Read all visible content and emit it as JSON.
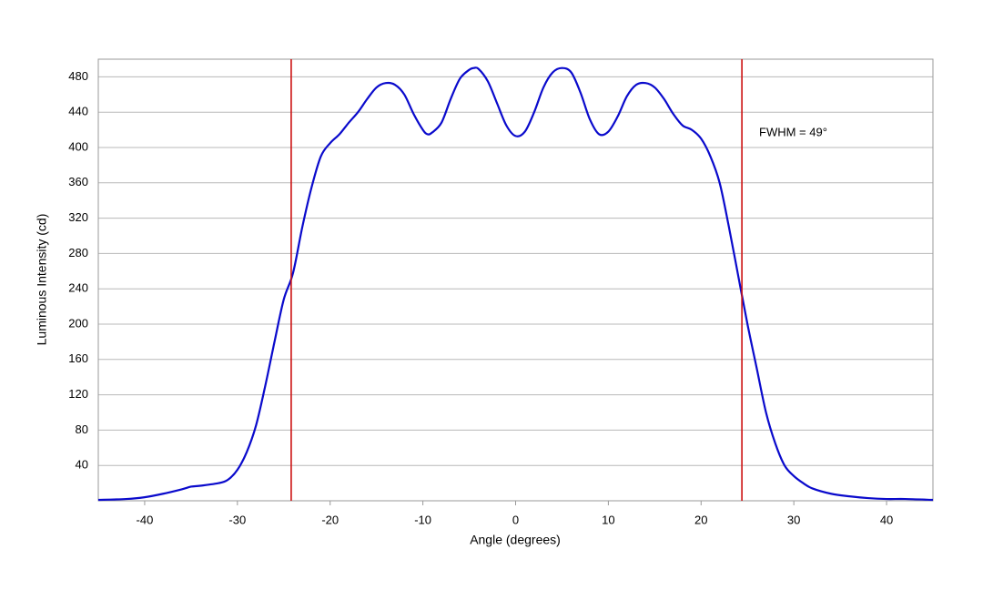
{
  "chart_data": {
    "type": "line",
    "xlabel": "Angle (degrees)",
    "ylabel": "Luminous Intensity (cd)",
    "annotation": "FWHM = 49°",
    "xlim": [
      -45,
      45
    ],
    "ylim": [
      0,
      500
    ],
    "xticks": [
      -40,
      -30,
      -20,
      -10,
      0,
      10,
      20,
      30,
      40
    ],
    "yticks": [
      40,
      80,
      120,
      160,
      200,
      240,
      280,
      320,
      360,
      400,
      440,
      480
    ],
    "grid": true,
    "vlines": [
      -24.2,
      24.4
    ],
    "vline_color": "#cc1111",
    "series": [
      {
        "color": "#0a0acc",
        "x": [
          -45,
          -42,
          -40,
          -38,
          -36,
          -35,
          -34,
          -32,
          -31,
          -30,
          -29,
          -28,
          -27,
          -26,
          -25,
          -24,
          -23,
          -22,
          -21,
          -20,
          -19,
          -18,
          -17,
          -16,
          -15,
          -14,
          -13,
          -12,
          -11,
          -10,
          -9.5,
          -9,
          -8,
          -7,
          -6,
          -5,
          -4.5,
          -4,
          -3,
          -2,
          -1,
          0,
          1,
          2,
          3,
          4,
          5,
          6,
          7,
          8,
          9,
          10,
          11,
          12,
          13,
          14,
          15,
          16,
          17,
          18,
          19,
          20,
          21,
          22,
          23,
          24,
          25,
          26,
          27,
          28,
          29,
          30,
          31,
          32,
          34,
          36,
          38,
          40,
          42,
          45
        ],
        "values": [
          1,
          2,
          4,
          8,
          13,
          16,
          17,
          20,
          24,
          35,
          55,
          85,
          130,
          180,
          228,
          258,
          310,
          355,
          390,
          405,
          415,
          428,
          440,
          455,
          468,
          473,
          471,
          460,
          438,
          420,
          415,
          417,
          428,
          455,
          478,
          488,
          490,
          489,
          475,
          450,
          425,
          413,
          418,
          440,
          468,
          485,
          490,
          485,
          462,
          432,
          415,
          418,
          435,
          458,
          471,
          473,
          468,
          455,
          438,
          425,
          420,
          410,
          390,
          360,
          310,
          255,
          200,
          150,
          100,
          65,
          40,
          28,
          20,
          14,
          8,
          5,
          3,
          2,
          2,
          1
        ]
      }
    ]
  }
}
